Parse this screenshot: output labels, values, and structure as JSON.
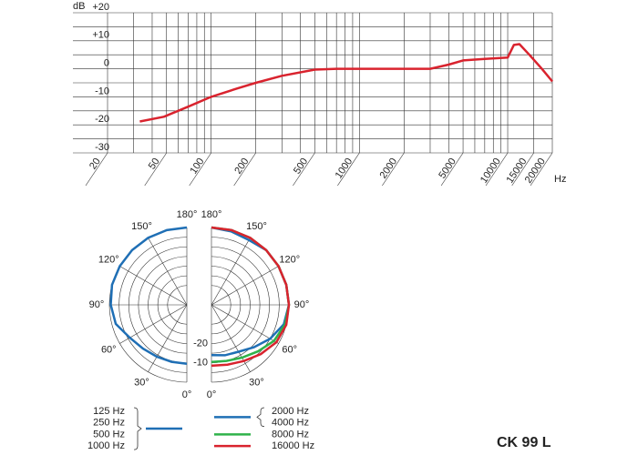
{
  "chart_data": [
    {
      "type": "line",
      "ylabel": "dB",
      "xlabel": "Hz",
      "log_x": true,
      "xlim": [
        20,
        20000
      ],
      "ylim": [
        -30,
        20
      ],
      "xticks": [
        20,
        50,
        100,
        200,
        500,
        1000,
        2000,
        5000,
        10000,
        15000,
        20000
      ],
      "xgrid": [
        20,
        30,
        40,
        50,
        60,
        70,
        80,
        90,
        100,
        200,
        300,
        400,
        500,
        600,
        700,
        800,
        900,
        1000,
        2000,
        3000,
        4000,
        5000,
        6000,
        7000,
        8000,
        9000,
        10000,
        15000,
        20000
      ],
      "yticks": [
        {
          "value": 20,
          "label": "+20"
        },
        {
          "value": 10,
          "label": "+10"
        },
        0,
        -10,
        -20,
        -30
      ],
      "ygrid": [
        20,
        15,
        10,
        5,
        0,
        -5,
        -10,
        -15,
        -20,
        -25,
        -30
      ],
      "x": [
        33,
        48,
        70,
        100,
        150,
        200,
        300,
        500,
        700,
        1000,
        2000,
        3000,
        4000,
        5000,
        7000,
        10000,
        11000,
        12000,
        14000,
        17000,
        20000
      ],
      "values": [
        -18.8,
        -17.1,
        -13.5,
        -10,
        -7,
        -5,
        -2.5,
        -0.3,
        0,
        0,
        0,
        0,
        1.5,
        3,
        3.5,
        4,
        8.5,
        8.8,
        5,
        0,
        -4.5
      ],
      "color": "#d9232e"
    },
    {
      "type": "polar",
      "title": "CK 99 L",
      "theta": [
        0,
        15,
        30,
        45,
        60,
        75,
        90,
        105,
        120,
        135,
        150,
        165,
        180
      ],
      "thetaticks": [
        {
          "value": 0,
          "label": "0°"
        },
        {
          "value": 30,
          "label": "30°"
        },
        {
          "value": 60,
          "label": "60°"
        },
        {
          "value": 90,
          "label": "90°"
        },
        {
          "value": 120,
          "label": "120°"
        },
        {
          "value": 150,
          "label": "150°"
        },
        {
          "value": 180,
          "label": "180°"
        }
      ],
      "rlim": [
        -40,
        0
      ],
      "rgrid": [
        -30,
        -25,
        -20,
        -15,
        -10,
        -5,
        0
      ],
      "rticks": [
        -20,
        -10
      ],
      "series": [
        {
          "names": [
            "125 Hz",
            "250 Hz",
            "500 Hz",
            "1000 Hz"
          ],
          "side": "left",
          "color": "#1f6fb5",
          "values": [
            -9.5,
            -9.5,
            -9,
            -8,
            -6,
            -2,
            -0.7,
            0,
            0,
            0,
            0,
            0,
            0
          ]
        },
        {
          "names": [
            "2000 Hz",
            "4000 Hz"
          ],
          "side": "right",
          "color": "#1f6fb5",
          "values": [
            -14,
            -13,
            -12,
            -9,
            -5,
            -1.3,
            0,
            0,
            0,
            0,
            -1.3,
            -0.7,
            0
          ]
        },
        {
          "names": [
            "8000 Hz"
          ],
          "side": "right",
          "color": "#2fb24a",
          "values": [
            -10.5,
            -10,
            -8.5,
            -6,
            -2.7,
            -0.7,
            0,
            0,
            0,
            0,
            0,
            0,
            0
          ]
        },
        {
          "names": [
            "16000 Hz"
          ],
          "side": "right",
          "color": "#d9232e",
          "values": [
            -8.5,
            -8,
            -6.5,
            -4,
            -1.3,
            0,
            0,
            0,
            0,
            0,
            0,
            0,
            0
          ]
        }
      ]
    }
  ]
}
